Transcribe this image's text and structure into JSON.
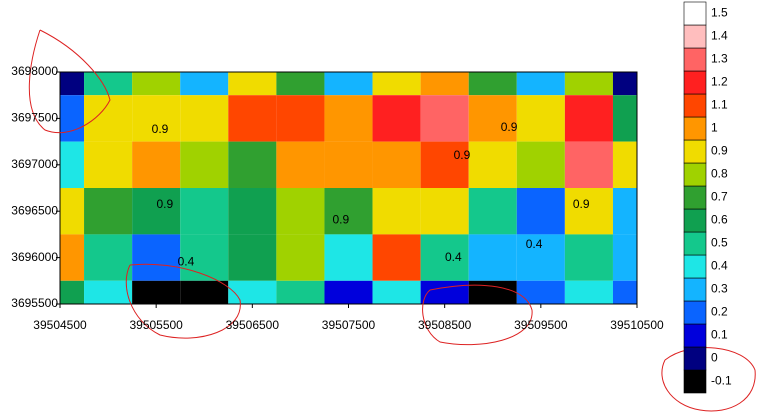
{
  "chart_data": {
    "type": "contour",
    "x": [
      39504500,
      39505000,
      39505500,
      39506000,
      39506500,
      39507000,
      39507500,
      39508000,
      39508500,
      39509000,
      39509500,
      39510000,
      39510500
    ],
    "y": [
      3698000,
      3697500,
      3697000,
      3696500,
      3696000,
      3695500
    ],
    "z": [
      [
        0.0,
        0.5,
        0.8,
        0.3,
        0.9,
        0.7,
        0.3,
        0.9,
        1.0,
        0.7,
        0.3,
        0.8,
        0.0
      ],
      [
        0.2,
        0.9,
        0.9,
        0.9,
        1.1,
        1.1,
        1.0,
        1.2,
        1.3,
        1.0,
        0.9,
        1.2,
        0.6
      ],
      [
        0.4,
        0.9,
        1.0,
        0.8,
        0.7,
        1.0,
        1.0,
        1.0,
        1.1,
        0.9,
        0.8,
        1.3,
        0.9
      ],
      [
        0.9,
        0.7,
        0.6,
        0.5,
        0.6,
        0.8,
        0.7,
        0.9,
        0.9,
        0.5,
        0.2,
        0.9,
        0.3
      ],
      [
        1.0,
        0.5,
        0.2,
        0.5,
        0.6,
        0.8,
        0.4,
        1.1,
        0.5,
        0.3,
        0.3,
        0.5,
        0.3
      ],
      [
        0.6,
        0.4,
        -0.1,
        -0.1,
        0.4,
        0.5,
        0.1,
        0.4,
        0.1,
        -0.1,
        0.2,
        0.4,
        0.2
      ]
    ],
    "xlim": [
      39504500,
      39510500
    ],
    "ylim": [
      3695500,
      3698000
    ],
    "xticks": [
      39504500,
      39505500,
      39506500,
      39507500,
      39508500,
      39509500,
      39510500
    ],
    "yticks": [
      3695500,
      3696000,
      3696500,
      3697000,
      3697500,
      3698000
    ],
    "levels": [
      -0.1,
      0,
      0.1,
      0.2,
      0.3,
      0.4,
      0.5,
      0.6,
      0.7,
      0.8,
      0.9,
      1,
      1.1,
      1.2,
      1.3,
      1.4,
      1.5
    ],
    "colors": [
      "#000000",
      "#000080",
      "#0000dc",
      "#0a64ff",
      "#14b4ff",
      "#1ee6e6",
      "#14c88c",
      "#10a050",
      "#30a030",
      "#a0d200",
      "#f0dc00",
      "#ff9600",
      "#ff4600",
      "#ff2020",
      "#ff6464",
      "#ffbebe",
      "#ffffff"
    ],
    "annotations": [
      {
        "text": "0.9",
        "x": 39505540,
        "y": 3697375
      },
      {
        "text": "0.9",
        "x": 39505590,
        "y": 3696567
      },
      {
        "text": "0.9",
        "x": 39508680,
        "y": 3697095
      },
      {
        "text": "0.9",
        "x": 39509170,
        "y": 3697400
      },
      {
        "text": "0.9",
        "x": 39507420,
        "y": 3696400
      },
      {
        "text": "0.9",
        "x": 39509920,
        "y": 3696570
      },
      {
        "text": "0.4",
        "x": 39505810,
        "y": 3695950
      },
      {
        "text": "0.4",
        "x": 39508590,
        "y": 3696000
      },
      {
        "text": "0.4",
        "x": 39509430,
        "y": 3696135
      }
    ]
  }
}
